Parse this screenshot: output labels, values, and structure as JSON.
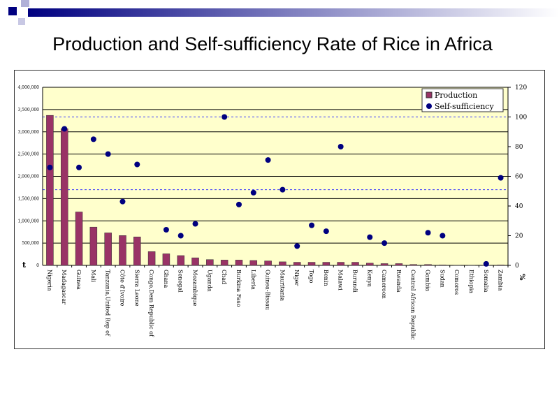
{
  "title": "Production and Self-sufficiency Rate of Rice in Africa",
  "colors": {
    "bar": "#993366",
    "dot": "#000080",
    "plot_bg": "#FFFFCC",
    "reference_line": "#3333FF",
    "deco_square": "#000080"
  },
  "chart_data": {
    "type": "bar+scatter",
    "title": "Production and Self-sufficiency Rate of Rice in Africa",
    "categories": [
      "Nigeria",
      "Madagascar",
      "Guinea",
      "Mali",
      "Tanzania,United Rep of",
      "Côte d'Ivoire",
      "Sierra Leone",
      "Congo,Dem Republic of",
      "Ghana",
      "Senegal",
      "Mozambique",
      "Uganda",
      "Chad",
      "Burkina Faso",
      "Liberia",
      "Guinea-Bissau",
      "Mauritania",
      "Niger",
      "Togo",
      "Benin",
      "Malawi",
      "Burundi",
      "Kenya",
      "Cameroon",
      "Rwanda",
      "Central African Republic",
      "Gambia",
      "Sudan",
      "Comoros",
      "Ethiopia",
      "Somalia",
      "Zambia"
    ],
    "series": [
      {
        "name": "Production",
        "axis": "left",
        "type": "bar",
        "values": [
          3370000,
          3070000,
          1200000,
          860000,
          730000,
          670000,
          640000,
          310000,
          260000,
          220000,
          170000,
          130000,
          120000,
          120000,
          110000,
          100000,
          80000,
          70000,
          70000,
          70000,
          70000,
          70000,
          50000,
          40000,
          40000,
          20000,
          20000,
          10000,
          5000,
          5000,
          3000,
          10000
        ]
      },
      {
        "name": "Self-sufficiency",
        "axis": "right",
        "type": "scatter",
        "values": [
          66,
          92,
          66,
          85,
          75,
          43,
          68,
          null,
          24,
          20,
          28,
          null,
          100,
          41,
          49,
          71,
          51,
          13,
          27,
          23,
          80,
          null,
          19,
          15,
          null,
          null,
          22,
          20,
          null,
          null,
          1,
          59
        ]
      }
    ],
    "left_axis": {
      "unit": "t",
      "ylim": [
        0,
        4000000
      ],
      "ticks": [
        "0",
        "500,000",
        "1,000,000",
        "1,500,000",
        "2,000,000",
        "2,500,000",
        "3,000,000",
        "3,500,000",
        "4,000,000"
      ]
    },
    "right_axis": {
      "unit": "%",
      "ylim": [
        0,
        120
      ],
      "ticks": [
        "0",
        "20",
        "40",
        "60",
        "80",
        "100",
        "120"
      ]
    },
    "reference_lines_right_axis": [
      100,
      51
    ],
    "grid": true,
    "legend": "top-right"
  }
}
